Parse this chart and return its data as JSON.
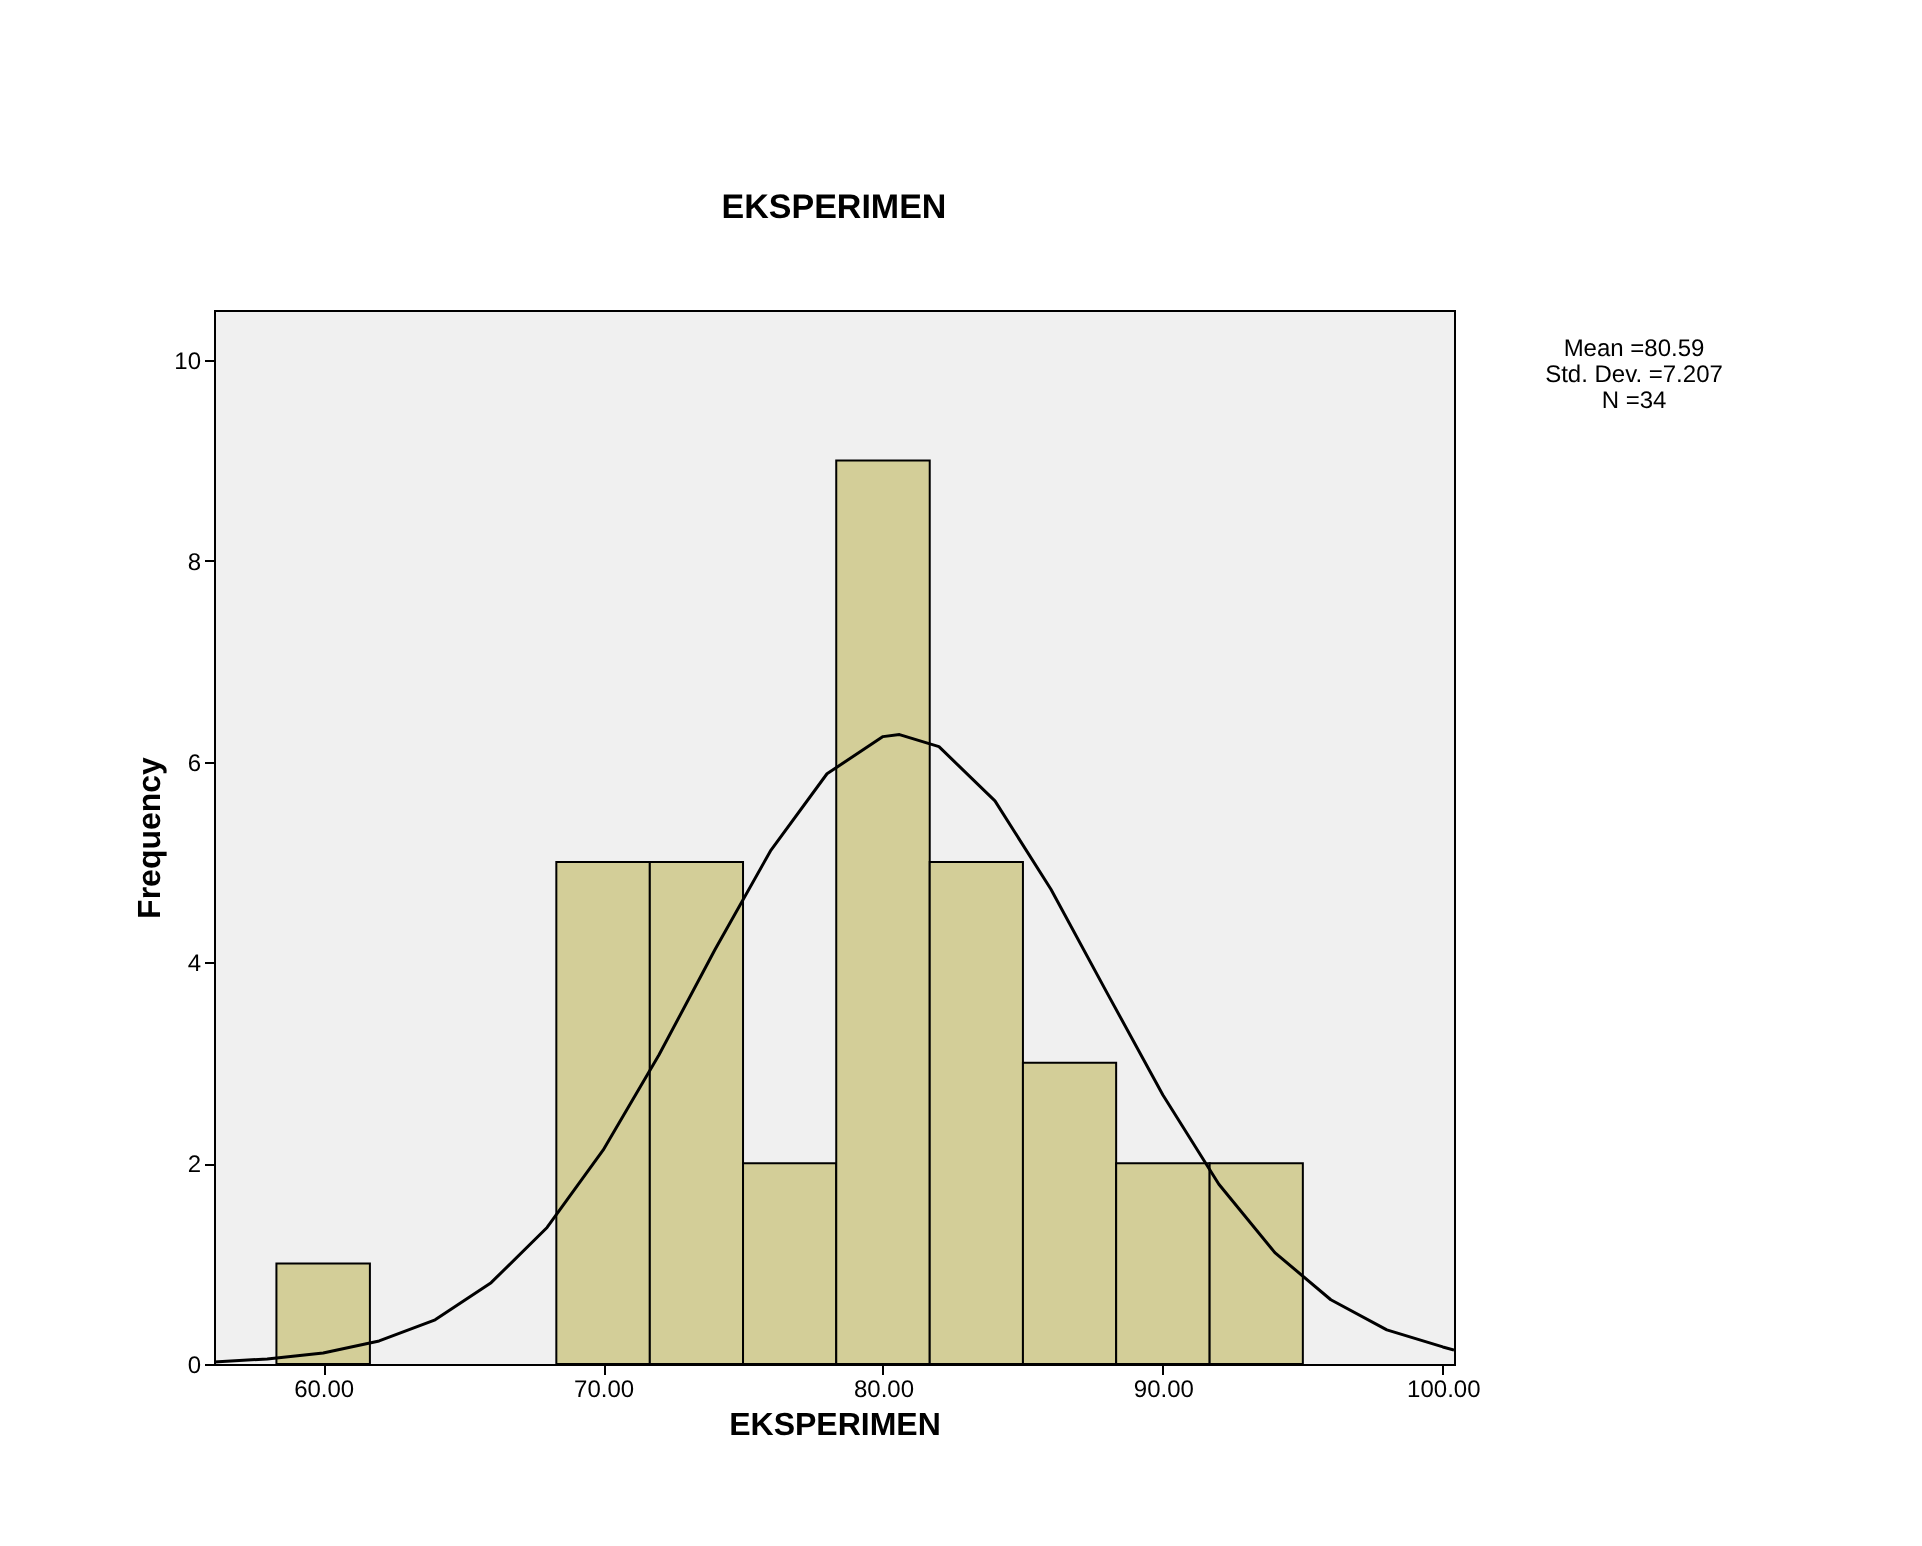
{
  "chart_data": {
    "type": "histogram",
    "title": "EKSPERIMEN",
    "xlabel": "EKSPERIMEN",
    "ylabel": "Frequency",
    "bins": [
      58.33,
      61.67,
      65,
      68.33,
      71.67,
      75,
      78.33,
      81.67,
      85,
      88.33,
      91.67,
      95
    ],
    "values": [
      1,
      0,
      0,
      5,
      5,
      2,
      9,
      5,
      3,
      2,
      2
    ],
    "color": "#d3ce98",
    "series": [
      {
        "type": "line",
        "color": "#000000",
        "x": [
          56.1,
          58,
          60,
          62,
          64,
          66,
          68,
          70,
          72,
          74,
          76,
          78,
          80,
          80.59,
          82,
          84,
          86,
          88,
          90,
          92,
          94,
          96,
          98,
          100,
          100.4
        ],
        "values": [
          0.02,
          0.05,
          0.11,
          0.23,
          0.44,
          0.81,
          1.36,
          2.13,
          3.08,
          4.13,
          5.12,
          5.88,
          6.25,
          6.27,
          6.15,
          5.61,
          4.73,
          3.7,
          2.68,
          1.79,
          1.11,
          0.64,
          0.34,
          0.17,
          0.14
        ]
      }
    ],
    "xlim": [
      56.1,
      100.4
    ],
    "xticks": [
      {
        "value": 60,
        "label": "60.00"
      },
      {
        "value": 70,
        "label": "70.00"
      },
      {
        "value": 80,
        "label": "80.00"
      },
      {
        "value": 90,
        "label": "90.00"
      },
      {
        "value": 100,
        "label": "100.00"
      }
    ],
    "ylim": [
      0,
      10.5
    ],
    "yticks": [
      0,
      2,
      4,
      6,
      8,
      10
    ],
    "grid": false,
    "legend": false,
    "annotations": [
      "Mean =80.59",
      "Std. Dev. =7.207",
      "N =34"
    ]
  }
}
